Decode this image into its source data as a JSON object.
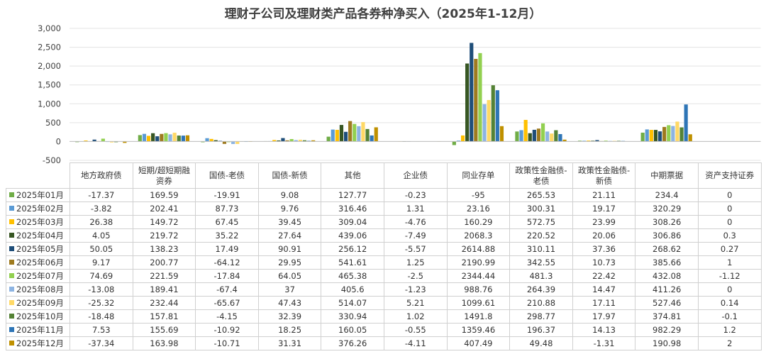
{
  "chart_data": {
    "type": "bar",
    "title": "理财子公司及理财类产品各券种净买入（2025年1-12月）",
    "ylim": [
      -500,
      3000
    ],
    "yticks": [
      -500,
      0,
      500,
      1000,
      1500,
      2000,
      2500,
      3000
    ],
    "ytick_labels": [
      "-500",
      "0",
      "500",
      "1,000",
      "1,500",
      "2,000",
      "2,500",
      "3,000"
    ],
    "categories": [
      "地方政府债",
      "短期/超短期融资券",
      "国债-老债",
      "国债-新债",
      "其他",
      "企业债",
      "同业存单",
      "政策性金融债-老债",
      "政策性金融债-新债",
      "中期票据",
      "资产支持证券"
    ],
    "category_labels": [
      [
        "地方政府债"
      ],
      [
        "短期/超短期融",
        "资券"
      ],
      [
        "国债-老债"
      ],
      [
        "国债-新债"
      ],
      [
        "其他"
      ],
      [
        "企业债"
      ],
      [
        "同业存单"
      ],
      [
        "政策性金融债-",
        "老债"
      ],
      [
        "政策性金融债-",
        "新债"
      ],
      [
        "中期票据"
      ],
      [
        "资产支持证券"
      ]
    ],
    "series": [
      {
        "name": "2025年01月",
        "color": "#70ad47",
        "values": [
          -17.37,
          169.59,
          -19.91,
          9.08,
          127.77,
          -0.23,
          -95,
          265.53,
          21.11,
          234.4,
          0
        ],
        "labels": [
          "-17.37",
          "169.59",
          "-19.91",
          "9.08",
          "127.77",
          "-0.23",
          "-95",
          "265.53",
          "21.11",
          "234.4",
          "0"
        ]
      },
      {
        "name": "2025年02月",
        "color": "#5b9bd5",
        "values": [
          -3.82,
          202.41,
          87.73,
          9.76,
          316.46,
          1.31,
          23.16,
          300.31,
          19.17,
          320.29,
          0
        ],
        "labels": [
          "-3.82",
          "202.41",
          "87.73",
          "9.76",
          "316.46",
          "1.31",
          "23.16",
          "300.31",
          "19.17",
          "320.29",
          "0"
        ]
      },
      {
        "name": "2025年03月",
        "color": "#ffc000",
        "values": [
          26.38,
          149.72,
          67.45,
          39.45,
          309.04,
          -4.76,
          160.29,
          572.75,
          23.99,
          308.26,
          0
        ],
        "labels": [
          "26.38",
          "149.72",
          "67.45",
          "39.45",
          "309.04",
          "-4.76",
          "160.29",
          "572.75",
          "23.99",
          "308.26",
          "0"
        ]
      },
      {
        "name": "2025年04月",
        "color": "#375623",
        "values": [
          4.05,
          219.72,
          35.22,
          27.64,
          439.06,
          -7.49,
          2068.3,
          220.52,
          20.06,
          306.86,
          0.3
        ],
        "labels": [
          "4.05",
          "219.72",
          "35.22",
          "27.64",
          "439.06",
          "-7.49",
          "2068.3",
          "220.52",
          "20.06",
          "306.86",
          "0.3"
        ]
      },
      {
        "name": "2025年05月",
        "color": "#1f4e79",
        "values": [
          50.05,
          138.23,
          17.49,
          90.91,
          256.12,
          -5.57,
          2614.88,
          310.11,
          37.36,
          268.62,
          0.27
        ],
        "labels": [
          "50.05",
          "138.23",
          "17.49",
          "90.91",
          "256.12",
          "-5.57",
          "2614.88",
          "310.11",
          "37.36",
          "268.62",
          "0.27"
        ]
      },
      {
        "name": "2025年06月",
        "color": "#9e7a1f",
        "values": [
          9.17,
          200.77,
          -64.12,
          29.95,
          541.61,
          1.25,
          2190.99,
          342.55,
          10.73,
          385.66,
          1
        ],
        "labels": [
          "9.17",
          "200.77",
          "-64.12",
          "29.95",
          "541.61",
          "1.25",
          "2190.99",
          "342.55",
          "10.73",
          "385.66",
          "1"
        ]
      },
      {
        "name": "2025年07月",
        "color": "#92d050",
        "values": [
          74.69,
          221.59,
          -17.84,
          64.05,
          465.38,
          -2.5,
          2344.44,
          481.3,
          22.42,
          432.08,
          -1.12
        ],
        "labels": [
          "74.69",
          "221.59",
          "-17.84",
          "64.05",
          "465.38",
          "-2.5",
          "2344.44",
          "481.3",
          "22.42",
          "432.08",
          "-1.12"
        ]
      },
      {
        "name": "2025年08月",
        "color": "#8db4e2",
        "values": [
          -13.08,
          189.41,
          -67.4,
          37,
          405.6,
          -1.23,
          988.76,
          264.39,
          14.47,
          411.26,
          0
        ],
        "labels": [
          "-13.08",
          "189.41",
          "-67.4",
          "37",
          "405.6",
          "-1.23",
          "988.76",
          "264.39",
          "14.47",
          "411.26",
          "0"
        ]
      },
      {
        "name": "2025年09月",
        "color": "#ffd966",
        "values": [
          -25.32,
          232.44,
          -65.67,
          47.43,
          514.07,
          5.21,
          1099.61,
          210.88,
          17.11,
          527.46,
          0.14
        ],
        "labels": [
          "-25.32",
          "232.44",
          "-65.67",
          "47.43",
          "514.07",
          "5.21",
          "1099.61",
          "210.88",
          "17.11",
          "527.46",
          "0.14"
        ]
      },
      {
        "name": "2025年10月",
        "color": "#548235",
        "values": [
          -18.48,
          157.81,
          -4.15,
          32.39,
          330.94,
          1.02,
          1491.8,
          298.77,
          17.97,
          374.81,
          -0.1
        ],
        "labels": [
          "-18.48",
          "157.81",
          "-4.15",
          "32.39",
          "330.94",
          "1.02",
          "1491.8",
          "298.77",
          "17.97",
          "374.81",
          "-0.1"
        ]
      },
      {
        "name": "2025年11月",
        "color": "#2e75b6",
        "values": [
          7.53,
          155.69,
          -10.92,
          18.25,
          160.05,
          -0.55,
          1359.46,
          196.37,
          14.13,
          982.29,
          1.2
        ],
        "labels": [
          "7.53",
          "155.69",
          "-10.92",
          "18.25",
          "160.05",
          "-0.55",
          "1359.46",
          "196.37",
          "14.13",
          "982.29",
          "1.2"
        ]
      },
      {
        "name": "2025年12月",
        "color": "#bf9000",
        "values": [
          -37.34,
          163.98,
          -10.71,
          31.31,
          376.26,
          -4.11,
          407.49,
          49.48,
          -1.31,
          190.98,
          2
        ],
        "labels": [
          "-37.34",
          "163.98",
          "-10.71",
          "31.31",
          "376.26",
          "-4.11",
          "407.49",
          "49.48",
          "-1.31",
          "190.98",
          "2"
        ]
      }
    ],
    "grid": true,
    "legend": "table-left"
  }
}
